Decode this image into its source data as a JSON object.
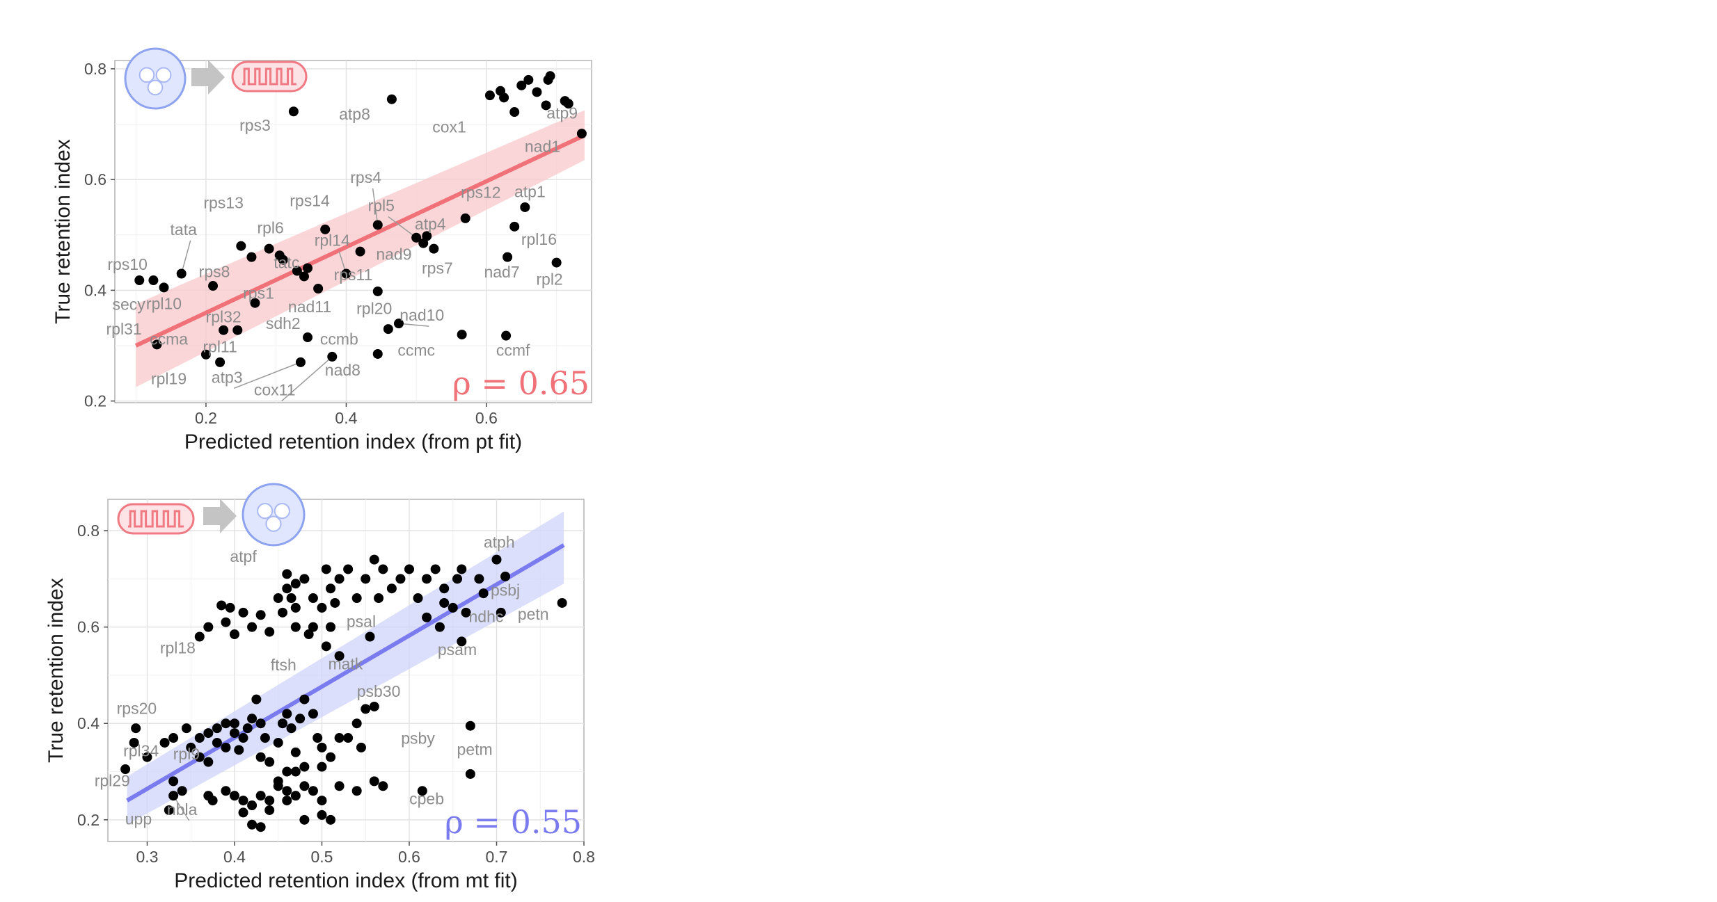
{
  "chart_data": [
    {
      "type": "scatter",
      "title": "",
      "xlabel": "Predicted retention index (from pt fit)",
      "ylabel": "True retention index",
      "xlim": [
        0.07,
        0.75
      ],
      "ylim": [
        0.197,
        0.815
      ],
      "xticks": [
        0.2,
        0.4,
        0.6
      ],
      "yticks": [
        0.2,
        0.4,
        0.6,
        0.8
      ],
      "grid": true,
      "correlation_label": "ρ = 0.65",
      "fit_color": "#f07178",
      "band_color": "#f9c8cb",
      "icons": [
        "chloroplast-icon",
        "arrow-right-icon",
        "mitochondrion-icon"
      ],
      "fit": {
        "x": [
          0.1,
          0.74
        ],
        "y": [
          0.3,
          0.68
        ],
        "band_lo": [
          0.225,
          0.635
        ],
        "band_hi": [
          0.375,
          0.725
        ]
      },
      "points": [
        [
          0.325,
          0.723
        ],
        [
          0.465,
          0.745
        ],
        [
          0.605,
          0.752
        ],
        [
          0.625,
          0.748
        ],
        [
          0.62,
          0.76
        ],
        [
          0.65,
          0.77
        ],
        [
          0.66,
          0.78
        ],
        [
          0.688,
          0.78
        ],
        [
          0.691,
          0.787
        ],
        [
          0.672,
          0.758
        ],
        [
          0.64,
          0.722
        ],
        [
          0.685,
          0.734
        ],
        [
          0.712,
          0.742
        ],
        [
          0.717,
          0.737
        ],
        [
          0.736,
          0.683
        ],
        [
          0.105,
          0.418
        ],
        [
          0.125,
          0.418
        ],
        [
          0.14,
          0.405
        ],
        [
          0.165,
          0.43
        ],
        [
          0.21,
          0.408
        ],
        [
          0.25,
          0.48
        ],
        [
          0.265,
          0.46
        ],
        [
          0.29,
          0.475
        ],
        [
          0.305,
          0.463
        ],
        [
          0.31,
          0.455
        ],
        [
          0.33,
          0.435
        ],
        [
          0.345,
          0.44
        ],
        [
          0.34,
          0.425
        ],
        [
          0.36,
          0.403
        ],
        [
          0.27,
          0.377
        ],
        [
          0.37,
          0.51
        ],
        [
          0.4,
          0.43
        ],
        [
          0.42,
          0.47
        ],
        [
          0.445,
          0.518
        ],
        [
          0.445,
          0.398
        ],
        [
          0.5,
          0.495
        ],
        [
          0.51,
          0.485
        ],
        [
          0.515,
          0.498
        ],
        [
          0.525,
          0.475
        ],
        [
          0.57,
          0.53
        ],
        [
          0.63,
          0.46
        ],
        [
          0.64,
          0.515
        ],
        [
          0.655,
          0.55
        ],
        [
          0.7,
          0.45
        ],
        [
          0.13,
          0.302
        ],
        [
          0.2,
          0.284
        ],
        [
          0.22,
          0.27
        ],
        [
          0.225,
          0.328
        ],
        [
          0.245,
          0.328
        ],
        [
          0.335,
          0.27
        ],
        [
          0.345,
          0.315
        ],
        [
          0.38,
          0.28
        ],
        [
          0.445,
          0.285
        ],
        [
          0.46,
          0.33
        ],
        [
          0.475,
          0.34
        ],
        [
          0.565,
          0.32
        ],
        [
          0.628,
          0.318
        ]
      ],
      "labels": [
        {
          "text": "rps3",
          "x": 0.27,
          "y": 0.688
        },
        {
          "text": "atp8",
          "x": 0.412,
          "y": 0.708
        },
        {
          "text": "cox1",
          "x": 0.547,
          "y": 0.685
        },
        {
          "text": "atp9",
          "x": 0.708,
          "y": 0.71
        },
        {
          "text": "nad1",
          "x": 0.68,
          "y": 0.65
        },
        {
          "text": "rps4",
          "x": 0.428,
          "y": 0.594,
          "line_to": [
            0.445,
            0.518
          ]
        },
        {
          "text": "rps14",
          "x": 0.348,
          "y": 0.552
        },
        {
          "text": "rps13",
          "x": 0.225,
          "y": 0.548
        },
        {
          "text": "rpl5",
          "x": 0.45,
          "y": 0.543,
          "line_to": [
            0.5,
            0.495
          ]
        },
        {
          "text": "rps12",
          "x": 0.592,
          "y": 0.567
        },
        {
          "text": "atp1",
          "x": 0.662,
          "y": 0.568
        },
        {
          "text": "tata",
          "x": 0.168,
          "y": 0.5,
          "line_to": [
            0.165,
            0.43
          ]
        },
        {
          "text": "rpl6",
          "x": 0.292,
          "y": 0.503
        },
        {
          "text": "atp4",
          "x": 0.52,
          "y": 0.51
        },
        {
          "text": "rpl14",
          "x": 0.38,
          "y": 0.48,
          "line_to": [
            0.4,
            0.43
          ]
        },
        {
          "text": "rpl16",
          "x": 0.675,
          "y": 0.482
        },
        {
          "text": "nad9",
          "x": 0.468,
          "y": 0.455
        },
        {
          "text": "tatc",
          "x": 0.315,
          "y": 0.44
        },
        {
          "text": "rps10",
          "x": 0.088,
          "y": 0.437
        },
        {
          "text": "rps7",
          "x": 0.53,
          "y": 0.43
        },
        {
          "text": "rps8",
          "x": 0.212,
          "y": 0.424
        },
        {
          "text": "rps11",
          "x": 0.41,
          "y": 0.418
        },
        {
          "text": "nad7",
          "x": 0.622,
          "y": 0.423
        },
        {
          "text": "rpl2",
          "x": 0.69,
          "y": 0.41
        },
        {
          "text": "rpl10",
          "x": 0.14,
          "y": 0.366
        },
        {
          "text": "secy",
          "x": 0.09,
          "y": 0.365
        },
        {
          "text": "rps1",
          "x": 0.275,
          "y": 0.385
        },
        {
          "text": "nad11",
          "x": 0.348,
          "y": 0.36
        },
        {
          "text": "rpl20",
          "x": 0.44,
          "y": 0.357
        },
        {
          "text": "nad10",
          "x": 0.508,
          "y": 0.345,
          "line_to": [
            0.475,
            0.34
          ]
        },
        {
          "text": "rpl32",
          "x": 0.225,
          "y": 0.342
        },
        {
          "text": "sdh2",
          "x": 0.31,
          "y": 0.33
        },
        {
          "text": "rpl31",
          "x": 0.083,
          "y": 0.32
        },
        {
          "text": "ccma",
          "x": 0.147,
          "y": 0.302
        },
        {
          "text": "ccmb",
          "x": 0.39,
          "y": 0.302
        },
        {
          "text": "rpl11",
          "x": 0.22,
          "y": 0.288
        },
        {
          "text": "ccmc",
          "x": 0.5,
          "y": 0.282
        },
        {
          "text": "ccmf",
          "x": 0.638,
          "y": 0.282
        },
        {
          "text": "nad8",
          "x": 0.395,
          "y": 0.246
        },
        {
          "text": "rpl19",
          "x": 0.147,
          "y": 0.23
        },
        {
          "text": "atp3",
          "x": 0.23,
          "y": 0.233,
          "line_to": [
            0.335,
            0.27
          ]
        },
        {
          "text": "cox11",
          "x": 0.298,
          "y": 0.21,
          "line_to": [
            0.38,
            0.28
          ]
        }
      ]
    },
    {
      "type": "scatter",
      "title": "",
      "xlabel": "Predicted retention index (from mt fit)",
      "ylabel": "True retention index",
      "xlim": [
        0.255,
        0.8
      ],
      "ylim": [
        0.155,
        0.865
      ],
      "xticks": [
        0.3,
        0.4,
        0.5,
        0.6,
        0.7,
        0.8
      ],
      "yticks": [
        0.2,
        0.4,
        0.6,
        0.8
      ],
      "grid": true,
      "correlation_label": "ρ = 0.55",
      "fit_color": "#7b7bf0",
      "band_color": "#cfd4fa",
      "icons": [
        "mitochondrion-icon",
        "arrow-right-icon",
        "chloroplast-icon"
      ],
      "fit": {
        "x": [
          0.277,
          0.777
        ],
        "y": [
          0.24,
          0.77
        ],
        "band_lo": [
          0.19,
          0.69
        ],
        "band_hi": [
          0.29,
          0.84
        ]
      },
      "points": [
        [
          0.287,
          0.39
        ],
        [
          0.285,
          0.36
        ],
        [
          0.275,
          0.305
        ],
        [
          0.32,
          0.36
        ],
        [
          0.33,
          0.37
        ],
        [
          0.33,
          0.28
        ],
        [
          0.34,
          0.26
        ],
        [
          0.3,
          0.33
        ],
        [
          0.345,
          0.39
        ],
        [
          0.35,
          0.35
        ],
        [
          0.36,
          0.37
        ],
        [
          0.36,
          0.33
        ],
        [
          0.37,
          0.32
        ],
        [
          0.37,
          0.38
        ],
        [
          0.38,
          0.39
        ],
        [
          0.38,
          0.36
        ],
        [
          0.39,
          0.35
        ],
        [
          0.39,
          0.4
        ],
        [
          0.4,
          0.38
        ],
        [
          0.4,
          0.4
        ],
        [
          0.405,
          0.345
        ],
        [
          0.41,
          0.37
        ],
        [
          0.415,
          0.39
        ],
        [
          0.42,
          0.41
        ],
        [
          0.425,
          0.45
        ],
        [
          0.43,
          0.4
        ],
        [
          0.435,
          0.37
        ],
        [
          0.44,
          0.32
        ],
        [
          0.45,
          0.36
        ],
        [
          0.455,
          0.4
        ],
        [
          0.46,
          0.42
        ],
        [
          0.465,
          0.39
        ],
        [
          0.47,
          0.34
        ],
        [
          0.475,
          0.41
        ],
        [
          0.48,
          0.45
        ],
        [
          0.49,
          0.42
        ],
        [
          0.495,
          0.37
        ],
        [
          0.5,
          0.31
        ],
        [
          0.51,
          0.33
        ],
        [
          0.52,
          0.37
        ],
        [
          0.53,
          0.37
        ],
        [
          0.54,
          0.4
        ],
        [
          0.55,
          0.43
        ],
        [
          0.545,
          0.35
        ],
        [
          0.43,
          0.33
        ],
        [
          0.46,
          0.3
        ],
        [
          0.48,
          0.31
        ],
        [
          0.5,
          0.35
        ],
        [
          0.37,
          0.25
        ],
        [
          0.375,
          0.24
        ],
        [
          0.39,
          0.26
        ],
        [
          0.4,
          0.25
        ],
        [
          0.41,
          0.24
        ],
        [
          0.42,
          0.23
        ],
        [
          0.43,
          0.25
        ],
        [
          0.44,
          0.24
        ],
        [
          0.45,
          0.27
        ],
        [
          0.46,
          0.26
        ],
        [
          0.47,
          0.25
        ],
        [
          0.48,
          0.27
        ],
        [
          0.49,
          0.26
        ],
        [
          0.5,
          0.24
        ],
        [
          0.52,
          0.27
        ],
        [
          0.54,
          0.26
        ],
        [
          0.56,
          0.28
        ],
        [
          0.57,
          0.27
        ],
        [
          0.42,
          0.19
        ],
        [
          0.43,
          0.185
        ],
        [
          0.41,
          0.215
        ],
        [
          0.44,
          0.22
        ],
        [
          0.46,
          0.24
        ],
        [
          0.48,
          0.2
        ],
        [
          0.5,
          0.21
        ],
        [
          0.51,
          0.2
        ],
        [
          0.45,
          0.28
        ],
        [
          0.47,
          0.3
        ],
        [
          0.36,
          0.58
        ],
        [
          0.37,
          0.6
        ],
        [
          0.385,
          0.645
        ],
        [
          0.39,
          0.61
        ],
        [
          0.395,
          0.64
        ],
        [
          0.4,
          0.585
        ],
        [
          0.41,
          0.63
        ],
        [
          0.42,
          0.6
        ],
        [
          0.43,
          0.625
        ],
        [
          0.44,
          0.59
        ],
        [
          0.45,
          0.66
        ],
        [
          0.455,
          0.63
        ],
        [
          0.46,
          0.68
        ],
        [
          0.465,
          0.66
        ],
        [
          0.47,
          0.64
        ],
        [
          0.48,
          0.7
        ],
        [
          0.49,
          0.66
        ],
        [
          0.5,
          0.64
        ],
        [
          0.505,
          0.72
        ],
        [
          0.51,
          0.68
        ],
        [
          0.515,
          0.65
        ],
        [
          0.52,
          0.7
        ],
        [
          0.53,
          0.72
        ],
        [
          0.54,
          0.66
        ],
        [
          0.55,
          0.7
        ],
        [
          0.56,
          0.74
        ],
        [
          0.565,
          0.66
        ],
        [
          0.57,
          0.72
        ],
        [
          0.58,
          0.68
        ],
        [
          0.59,
          0.7
        ],
        [
          0.6,
          0.72
        ],
        [
          0.61,
          0.66
        ],
        [
          0.62,
          0.7
        ],
        [
          0.63,
          0.72
        ],
        [
          0.64,
          0.68
        ],
        [
          0.65,
          0.64
        ],
        [
          0.655,
          0.7
        ],
        [
          0.66,
          0.72
        ],
        [
          0.665,
          0.63
        ],
        [
          0.68,
          0.7
        ],
        [
          0.685,
          0.67
        ],
        [
          0.47,
          0.6
        ],
        [
          0.485,
          0.585
        ],
        [
          0.51,
          0.6
        ],
        [
          0.505,
          0.56
        ],
        [
          0.52,
          0.54
        ],
        [
          0.555,
          0.58
        ],
        [
          0.62,
          0.62
        ],
        [
          0.635,
          0.6
        ],
        [
          0.64,
          0.65
        ],
        [
          0.7,
          0.74
        ],
        [
          0.71,
          0.705
        ],
        [
          0.705,
          0.63
        ],
        [
          0.775,
          0.65
        ],
        [
          0.66,
          0.57
        ],
        [
          0.67,
          0.395
        ],
        [
          0.67,
          0.295
        ],
        [
          0.615,
          0.26
        ],
        [
          0.56,
          0.435
        ],
        [
          0.33,
          0.25
        ],
        [
          0.325,
          0.22
        ],
        [
          0.46,
          0.71
        ],
        [
          0.47,
          0.69
        ],
        [
          0.49,
          0.6
        ]
      ],
      "labels": [
        {
          "text": "atpf",
          "x": 0.41,
          "y": 0.735
        },
        {
          "text": "atph",
          "x": 0.703,
          "y": 0.765
        },
        {
          "text": "psbj",
          "x": 0.71,
          "y": 0.665
        },
        {
          "text": "ndhc",
          "x": 0.688,
          "y": 0.61
        },
        {
          "text": "petn",
          "x": 0.742,
          "y": 0.615
        },
        {
          "text": "psal",
          "x": 0.545,
          "y": 0.6
        },
        {
          "text": "rpl18",
          "x": 0.335,
          "y": 0.545
        },
        {
          "text": "psam",
          "x": 0.655,
          "y": 0.542
        },
        {
          "text": "ftsh",
          "x": 0.456,
          "y": 0.51
        },
        {
          "text": "matk",
          "x": 0.527,
          "y": 0.512
        },
        {
          "text": "psb30",
          "x": 0.565,
          "y": 0.455
        },
        {
          "text": "rps20",
          "x": 0.288,
          "y": 0.42
        },
        {
          "text": "psby",
          "x": 0.61,
          "y": 0.358
        },
        {
          "text": "petm",
          "x": 0.675,
          "y": 0.335
        },
        {
          "text": "rpl34",
          "x": 0.293,
          "y": 0.332
        },
        {
          "text": "rpl9",
          "x": 0.345,
          "y": 0.325
        },
        {
          "text": "rpl29",
          "x": 0.26,
          "y": 0.27
        },
        {
          "text": "cpeb",
          "x": 0.62,
          "y": 0.232
        },
        {
          "text": "nbla",
          "x": 0.34,
          "y": 0.21,
          "line_to": [
            0.33,
            0.25
          ]
        },
        {
          "text": "upp",
          "x": 0.29,
          "y": 0.19
        },
        {
          "text": "",
          "x": 0.33,
          "y": 0.22
        }
      ]
    }
  ]
}
